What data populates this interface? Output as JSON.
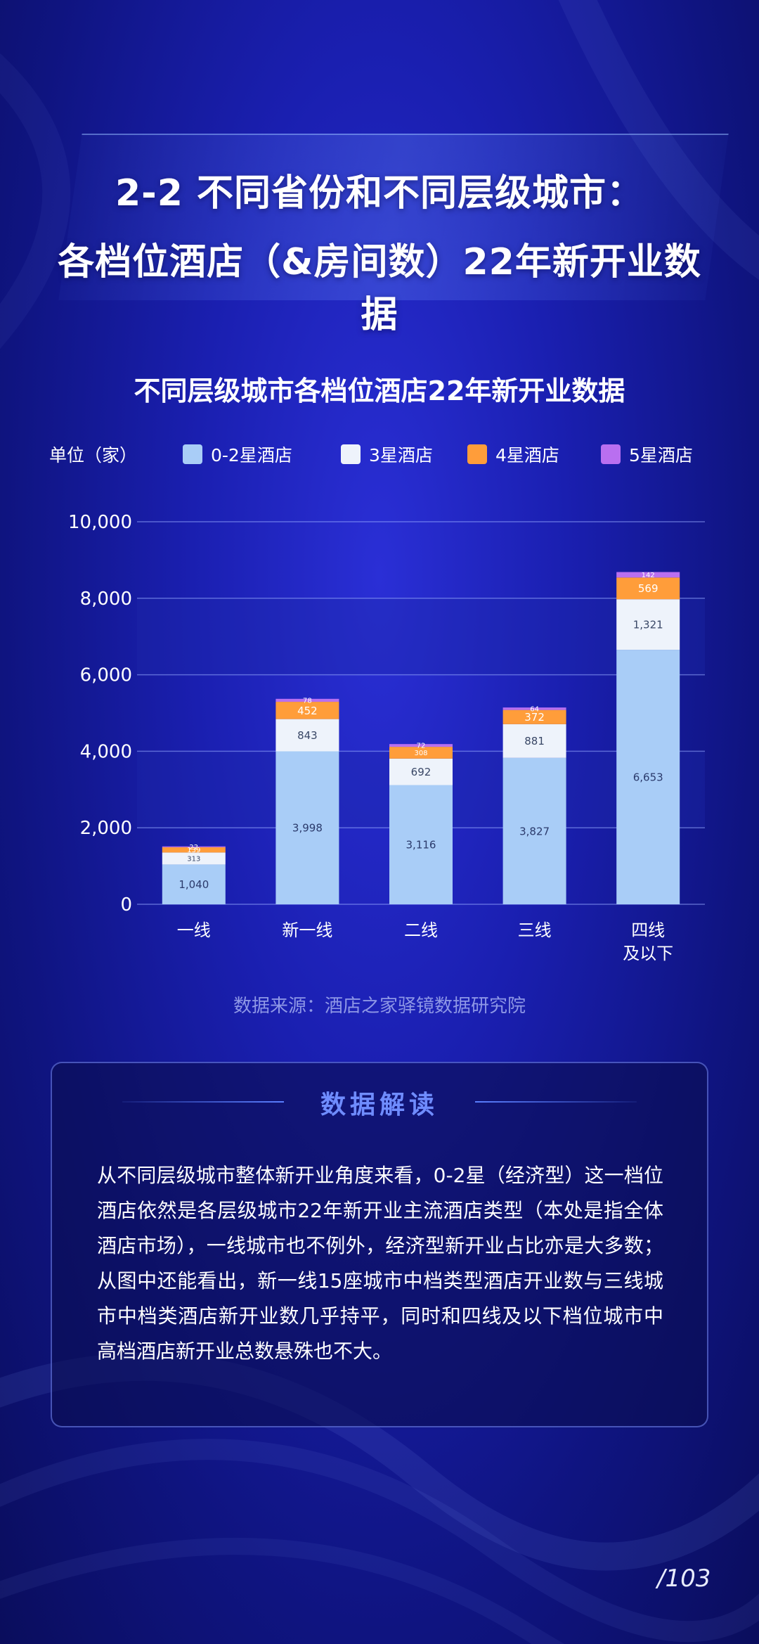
{
  "header": {
    "title_line1": "2-2 不同省份和不同层级城市：",
    "title_line2": "各档位酒店（&房间数）22年新开业数据"
  },
  "legend": {
    "unit": "单位（家）",
    "items": [
      {
        "label": "0-2星酒店",
        "color": "#a9cdf7"
      },
      {
        "label": "3星酒店",
        "color": "#eef3fb"
      },
      {
        "label": "4星酒店",
        "color": "#ff9d3a"
      },
      {
        "label": "5星酒店",
        "color": "#b96ff0"
      }
    ]
  },
  "chart_data": {
    "type": "bar",
    "stacked": true,
    "title": "不同层级城市各档位酒店22年新开业数据",
    "ylabel": "单位（家）",
    "ylim": [
      0,
      10000
    ],
    "yticks": [
      "0",
      "2,000",
      "4,000",
      "6,000",
      "8,000",
      "10,000"
    ],
    "ytick_values": [
      0,
      2000,
      4000,
      6000,
      8000,
      10000
    ],
    "categories": [
      "一线",
      "新一线",
      "二线",
      "三线",
      "四线\n及以下"
    ],
    "category_lines": [
      [
        "一线"
      ],
      [
        "新一线"
      ],
      [
        "二线"
      ],
      [
        "三线"
      ],
      [
        "四线",
        "及以下"
      ]
    ],
    "series": [
      {
        "name": "0-2星酒店",
        "color": "#a9cdf7",
        "values": [
          1040,
          3998,
          3116,
          3827,
          6653
        ],
        "labels": [
          "1,040",
          "3,998",
          "3,116",
          "3,827",
          "6,653"
        ]
      },
      {
        "name": "3星酒店",
        "color": "#eef3fb",
        "values": [
          313,
          843,
          692,
          881,
          1321
        ],
        "labels": [
          "313",
          "843",
          "692",
          "881",
          "1,321"
        ]
      },
      {
        "name": "4星酒店",
        "color": "#ff9d3a",
        "values": [
          139,
          452,
          308,
          372,
          569
        ],
        "labels": [
          "139",
          "452",
          "308",
          "372",
          "569"
        ]
      },
      {
        "name": "5星酒店",
        "color": "#b96ff0",
        "values": [
          22,
          78,
          72,
          64,
          142
        ],
        "labels": [
          "22",
          "78",
          "72",
          "64",
          "142"
        ]
      }
    ],
    "grid": true,
    "legend_position": "top"
  },
  "source": "数据来源：酒店之家驿镜数据研究院",
  "analysis": {
    "title": "数据解读",
    "text": "从不同层级城市整体新开业角度来看，0-2星（经济型）这一档位酒店依然是各层级城市22年新开业主流酒店类型（本处是指全体酒店市场），一线城市也不例外，经济型新开业占比亦是大多数；从图中还能看出，新一线15座城市中档类型酒店开业数与三线城市中档类酒店新开业数几乎持平，同时和四线及以下档位城市中高档酒店新开业总数悬殊也不大。"
  },
  "footer": {
    "page_number": "/103"
  }
}
